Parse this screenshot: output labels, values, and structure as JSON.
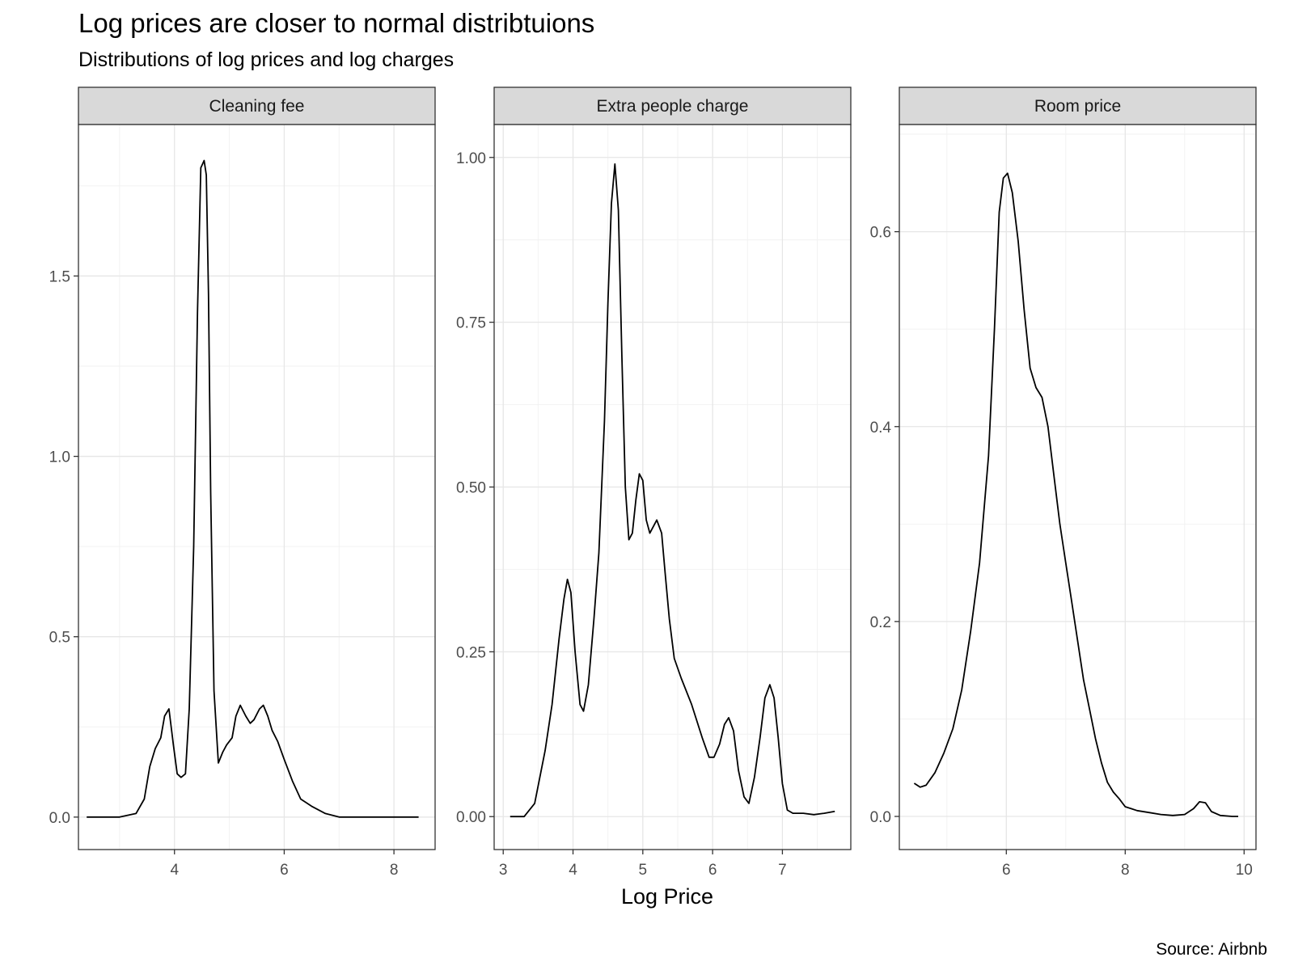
{
  "title": "Log prices are closer to normal distribtuions",
  "subtitle": "Distributions of log prices and log charges",
  "caption": "Source: Airbnb",
  "xlabel": "Log Price",
  "colors": {
    "line": "#000000",
    "strip_fill": "#d9d9d9",
    "grid_major": "#e6e6e6",
    "grid_minor": "#f2f2f2",
    "panel_border": "#333333",
    "tick_text": "#4d4d4d"
  },
  "chart_data": [
    {
      "type": "line",
      "facet": "Cleaning fee",
      "xlabel": "Log Price",
      "ylabel": "",
      "xlim": [
        2.25,
        8.75
      ],
      "ylim": [
        -0.09,
        1.92
      ],
      "x_ticks": [
        "4",
        "6",
        "8"
      ],
      "y_ticks": [
        "0.0",
        "0.5",
        "1.0",
        "1.5"
      ],
      "grid": true,
      "x": [
        2.4,
        3.0,
        3.3,
        3.45,
        3.55,
        3.65,
        3.75,
        3.82,
        3.9,
        3.98,
        4.05,
        4.12,
        4.2,
        4.27,
        4.35,
        4.42,
        4.48,
        4.54,
        4.58,
        4.62,
        4.66,
        4.72,
        4.8,
        4.88,
        4.95,
        5.05,
        5.12,
        5.2,
        5.3,
        5.38,
        5.45,
        5.55,
        5.62,
        5.7,
        5.78,
        5.88,
        6.0,
        6.15,
        6.3,
        6.5,
        6.75,
        7.0,
        7.3,
        7.6,
        8.0,
        8.45
      ],
      "y": [
        0.0,
        0.0,
        0.01,
        0.05,
        0.14,
        0.19,
        0.22,
        0.28,
        0.3,
        0.2,
        0.12,
        0.11,
        0.12,
        0.3,
        0.75,
        1.4,
        1.8,
        1.82,
        1.78,
        1.45,
        0.9,
        0.35,
        0.15,
        0.18,
        0.2,
        0.22,
        0.28,
        0.31,
        0.28,
        0.26,
        0.27,
        0.3,
        0.31,
        0.28,
        0.24,
        0.21,
        0.16,
        0.1,
        0.05,
        0.03,
        0.01,
        0.0,
        0.0,
        0.0,
        0.0,
        0.0
      ]
    },
    {
      "type": "line",
      "facet": "Extra people charge",
      "xlabel": "Log Price",
      "ylabel": "",
      "xlim": [
        2.87,
        7.98
      ],
      "ylim": [
        -0.05,
        1.05
      ],
      "x_ticks": [
        "3",
        "4",
        "5",
        "6",
        "7"
      ],
      "y_ticks": [
        "0.00",
        "0.25",
        "0.50",
        "0.75",
        "1.00"
      ],
      "grid": true,
      "x": [
        3.1,
        3.3,
        3.45,
        3.6,
        3.7,
        3.8,
        3.87,
        3.92,
        3.97,
        4.03,
        4.1,
        4.15,
        4.22,
        4.3,
        4.37,
        4.45,
        4.5,
        4.55,
        4.6,
        4.65,
        4.7,
        4.75,
        4.8,
        4.85,
        4.9,
        4.95,
        5.0,
        5.05,
        5.1,
        5.15,
        5.2,
        5.27,
        5.32,
        5.38,
        5.45,
        5.55,
        5.7,
        5.85,
        5.95,
        6.02,
        6.1,
        6.17,
        6.23,
        6.3,
        6.37,
        6.45,
        6.52,
        6.6,
        6.68,
        6.75,
        6.82,
        6.88,
        6.94,
        7.0,
        7.07,
        7.15,
        7.3,
        7.45,
        7.6,
        7.75
      ],
      "y": [
        0.0,
        0.0,
        0.02,
        0.1,
        0.17,
        0.27,
        0.33,
        0.36,
        0.34,
        0.25,
        0.17,
        0.16,
        0.2,
        0.3,
        0.4,
        0.6,
        0.78,
        0.93,
        0.99,
        0.92,
        0.7,
        0.5,
        0.42,
        0.43,
        0.48,
        0.52,
        0.51,
        0.45,
        0.43,
        0.44,
        0.45,
        0.43,
        0.37,
        0.3,
        0.24,
        0.21,
        0.17,
        0.12,
        0.09,
        0.09,
        0.11,
        0.14,
        0.15,
        0.13,
        0.07,
        0.03,
        0.02,
        0.06,
        0.12,
        0.18,
        0.2,
        0.18,
        0.12,
        0.05,
        0.01,
        0.005,
        0.005,
        0.003,
        0.005,
        0.008
      ]
    },
    {
      "type": "line",
      "facet": "Room price",
      "xlabel": "Log Price",
      "ylabel": "",
      "xlim": [
        4.2,
        10.2
      ],
      "ylim": [
        -0.034,
        0.71
      ],
      "x_ticks": [
        "6",
        "8",
        "10"
      ],
      "y_ticks": [
        "0.0",
        "0.2",
        "0.4",
        "0.6"
      ],
      "grid": true,
      "x": [
        4.45,
        4.55,
        4.65,
        4.8,
        4.95,
        5.1,
        5.25,
        5.4,
        5.55,
        5.7,
        5.8,
        5.88,
        5.95,
        6.02,
        6.1,
        6.2,
        6.3,
        6.4,
        6.5,
        6.6,
        6.7,
        6.8,
        6.9,
        7.0,
        7.1,
        7.2,
        7.3,
        7.4,
        7.5,
        7.6,
        7.7,
        7.8,
        7.9,
        8.0,
        8.1,
        8.2,
        8.4,
        8.6,
        8.8,
        9.0,
        9.15,
        9.25,
        9.35,
        9.45,
        9.6,
        9.8,
        9.9
      ],
      "y": [
        0.034,
        0.03,
        0.032,
        0.045,
        0.065,
        0.09,
        0.13,
        0.19,
        0.26,
        0.37,
        0.5,
        0.62,
        0.655,
        0.66,
        0.64,
        0.59,
        0.52,
        0.46,
        0.44,
        0.43,
        0.4,
        0.35,
        0.3,
        0.26,
        0.22,
        0.18,
        0.14,
        0.11,
        0.08,
        0.055,
        0.035,
        0.025,
        0.018,
        0.01,
        0.008,
        0.006,
        0.004,
        0.002,
        0.001,
        0.002,
        0.008,
        0.015,
        0.014,
        0.005,
        0.001,
        0.0,
        0.0
      ]
    }
  ]
}
